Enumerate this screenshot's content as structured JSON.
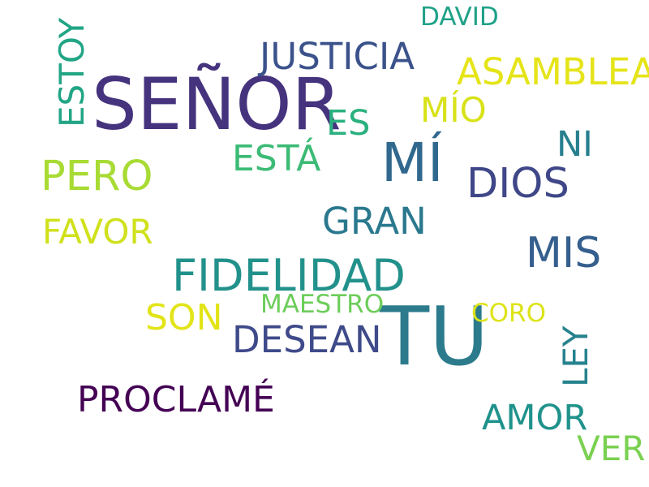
{
  "words": [
    {
      "text": "SEÑOR",
      "color": "#46337e"
    },
    {
      "text": "TU",
      "color": "#2c7b8c"
    },
    {
      "text": "MÍ",
      "color": "#31688e"
    },
    {
      "text": "FIDELIDAD",
      "color": "#22918b"
    },
    {
      "text": "JUSTICIA",
      "color": "#3b528b"
    },
    {
      "text": "ASAMBLEA",
      "color": "#e5e419"
    },
    {
      "text": "PERO",
      "color": "#a8db34"
    },
    {
      "text": "DIOS",
      "color": "#3f4788"
    },
    {
      "text": "MIS",
      "color": "#355f8d"
    },
    {
      "text": "PROCLAMÉ",
      "color": "#440154"
    },
    {
      "text": "ESTOY",
      "color": "#21a585"
    },
    {
      "text": "GRAN",
      "color": "#2a788e"
    },
    {
      "text": "DESEAN",
      "color": "#3e4a89"
    },
    {
      "text": "ESTÁ",
      "color": "#3bbb75"
    },
    {
      "text": "FAVOR",
      "color": "#d0e11c"
    },
    {
      "text": "SON",
      "color": "#e2e418"
    },
    {
      "text": "AMOR",
      "color": "#20928c"
    },
    {
      "text": "MÍO",
      "color": "#d8e219"
    },
    {
      "text": "ES",
      "color": "#2ab07f"
    },
    {
      "text": "NI",
      "color": "#277f8e"
    },
    {
      "text": "LEY",
      "color": "#26828e"
    },
    {
      "text": "VER",
      "color": "#7ad151"
    },
    {
      "text": "DAVID",
      "color": "#1fa188"
    },
    {
      "text": "MAESTRO",
      "color": "#6ccd5a"
    },
    {
      "text": "CORO",
      "color": "#dde318"
    }
  ]
}
